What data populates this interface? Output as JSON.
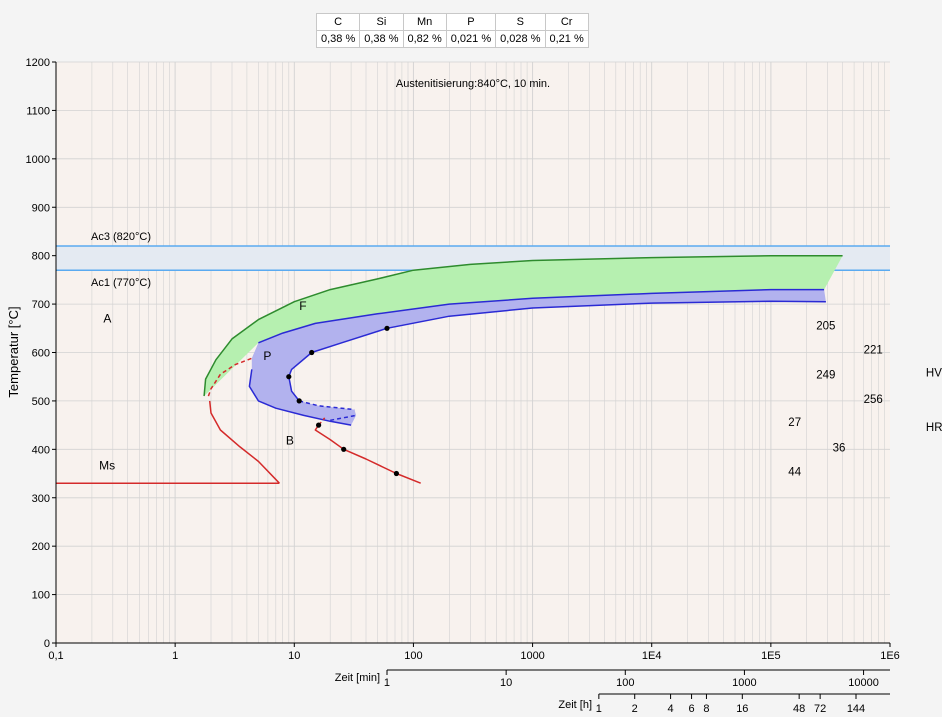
{
  "composition": {
    "headers": [
      "C",
      "Si",
      "Mn",
      "P",
      "S",
      "Cr"
    ],
    "values": [
      "0,38 %",
      "0,38 %",
      "0,82 %",
      "0,021 %",
      "0,028 %",
      "0,21 %"
    ]
  },
  "colors": {
    "plot_bg": "#f8f2ee",
    "grid": "#d2d2d2",
    "ac_band": "#e4eaf2",
    "ac_line": "#5aaaf0",
    "ferrite_fill": "#b6f0b0",
    "ferrite_line": "#2e8b2e",
    "pearlite_fill": "#b2b2ee",
    "pearlite_line": "#2a2ad4",
    "bainite_line": "#d42a2a"
  },
  "chart_data": {
    "type": "line",
    "title": "Austenitisierung:840°C, 10 min.",
    "ylabel": "Temperatur [°C]",
    "ylim": [
      0,
      1200
    ],
    "yticks": [
      "0",
      "100",
      "200",
      "300",
      "400",
      "500",
      "600",
      "700",
      "800",
      "900",
      "1000",
      "1100",
      "1200"
    ],
    "xscale": "log",
    "xlim_seconds": [
      0.1,
      1000000
    ],
    "xticks_seconds": [
      "0,1",
      "1",
      "10",
      "100",
      "1000",
      "1E4",
      "1E5",
      "1E6"
    ],
    "x_min_axis": {
      "label": "Zeit [min]",
      "ticks": [
        {
          "v": 1,
          "t": "1"
        },
        {
          "v": 10,
          "t": "10"
        },
        {
          "v": 100,
          "t": "100"
        },
        {
          "v": 1000,
          "t": "1000"
        },
        {
          "v": 10000,
          "t": "10000"
        }
      ]
    },
    "x_h_axis": {
      "label": "Zeit [h]",
      "ticks": [
        {
          "v": 1,
          "t": "1"
        },
        {
          "v": 2,
          "t": "2"
        },
        {
          "v": 4,
          "t": "4"
        },
        {
          "v": 6,
          "t": "6"
        },
        {
          "v": 8,
          "t": "8"
        },
        {
          "v": 16,
          "t": "16"
        },
        {
          "v": 48,
          "t": "48"
        },
        {
          "v": 72,
          "t": "72"
        },
        {
          "v": 144,
          "t": "144"
        }
      ]
    },
    "ac3": {
      "label": "Ac3 (820°C)",
      "value": 820
    },
    "ac1": {
      "label": "Ac1 (770°C)",
      "value": 770
    },
    "region_labels": [
      {
        "text": "A",
        "t": 0.25,
        "T": 662
      },
      {
        "text": "F",
        "t": 11,
        "T": 688
      },
      {
        "text": "P",
        "t": 5.5,
        "T": 584
      },
      {
        "text": "B",
        "t": 8.5,
        "T": 410
      },
      {
        "text": "Ms",
        "t": 0.23,
        "T": 358
      }
    ],
    "hardness_labels": [
      {
        "text": "205",
        "t": 240000,
        "T": 648
      },
      {
        "text": "221",
        "t": 600000,
        "T": 598
      },
      {
        "text": "249",
        "t": 240000,
        "T": 546
      },
      {
        "text": "256",
        "t": 600000,
        "T": 496
      },
      {
        "text": "27",
        "t": 140000,
        "T": 448
      },
      {
        "text": "36",
        "t": 330000,
        "T": 396
      },
      {
        "text": "44",
        "t": 140000,
        "T": 346
      },
      {
        "text": "HV",
        "t": 2000000,
        "T": 550
      },
      {
        "text": "HRC",
        "t": 2000000,
        "T": 438
      }
    ],
    "series": [
      {
        "name": "ferrite_start",
        "points": [
          [
            1.75,
            510
          ],
          [
            1.8,
            545
          ],
          [
            2.2,
            585
          ],
          [
            3,
            628
          ],
          [
            5,
            668
          ],
          [
            10,
            705
          ],
          [
            20,
            730
          ],
          [
            50,
            752
          ],
          [
            100,
            770
          ],
          [
            300,
            782
          ],
          [
            1000,
            790
          ],
          [
            10000,
            796
          ],
          [
            100000,
            800
          ],
          [
            400000,
            800
          ]
        ]
      },
      {
        "name": "ferrite_pearlite_boundary",
        "points": [
          [
            5,
            620
          ],
          [
            8,
            640
          ],
          [
            15,
            660
          ],
          [
            50,
            680
          ],
          [
            200,
            700
          ],
          [
            1000,
            712
          ],
          [
            10000,
            722
          ],
          [
            100000,
            730
          ],
          [
            280000,
            730
          ]
        ]
      },
      {
        "name": "pearlite_start",
        "points": [
          [
            4.4,
            565
          ],
          [
            4.2,
            530
          ],
          [
            5,
            500
          ],
          [
            7,
            485
          ],
          [
            12,
            470
          ],
          [
            20,
            458
          ],
          [
            30,
            450
          ]
        ]
      },
      {
        "name": "pearlite_start_dashed",
        "points": [
          [
            20,
            460
          ],
          [
            33,
            470
          ]
        ]
      },
      {
        "name": "pearlite_finish",
        "points": [
          [
            290000,
            705
          ],
          [
            100000,
            706
          ],
          [
            10000,
            702
          ],
          [
            1000,
            692
          ],
          [
            200,
            675
          ],
          [
            60,
            650
          ],
          [
            25,
            620
          ],
          [
            14,
            600
          ],
          [
            9.5,
            565
          ],
          [
            9,
            550
          ],
          [
            9.5,
            520
          ],
          [
            11,
            500
          ]
        ]
      },
      {
        "name": "pearlite_finish_dashed",
        "points": [
          [
            11,
            500
          ],
          [
            16,
            490
          ],
          [
            32,
            482
          ]
        ]
      },
      {
        "name": "bainite_start_dashed",
        "points": [
          [
            1.9,
            510
          ],
          [
            2,
            525
          ],
          [
            2.4,
            555
          ],
          [
            3.2,
            575
          ],
          [
            4.4,
            588
          ]
        ]
      },
      {
        "name": "bainite_start",
        "points": [
          [
            1.95,
            500
          ],
          [
            2,
            475
          ],
          [
            2.4,
            440
          ],
          [
            3.5,
            405
          ],
          [
            5,
            375
          ],
          [
            7.5,
            330
          ]
        ]
      },
      {
        "name": "ms_line",
        "points": [
          [
            0.1,
            330
          ],
          [
            7.5,
            330
          ]
        ]
      },
      {
        "name": "bainite_finish",
        "points": [
          [
            16,
            450
          ],
          [
            15,
            440
          ],
          [
            20,
            420
          ],
          [
            26,
            400
          ],
          [
            40,
            380
          ],
          [
            72,
            350
          ],
          [
            115,
            330
          ]
        ]
      },
      {
        "name": "bainite_finish_dashed",
        "points": [
          [
            16,
            450
          ],
          [
            18,
            465
          ]
        ]
      }
    ],
    "markers": [
      [
        60,
        650
      ],
      [
        14,
        600
      ],
      [
        9,
        550
      ],
      [
        11,
        500
      ],
      [
        16,
        450
      ],
      [
        26,
        400
      ],
      [
        72,
        350
      ]
    ]
  }
}
